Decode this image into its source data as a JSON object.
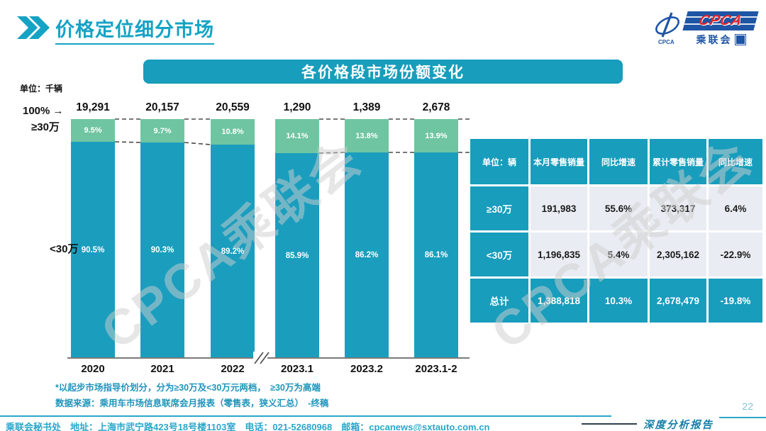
{
  "page": {
    "title": "价格定位细分市场",
    "page_number": "22",
    "report_label": "深度分析报告"
  },
  "logo": {
    "acronym": "CPCA",
    "org_name": "乘联会",
    "emblem_text": "CPCA"
  },
  "banner": {
    "title": "各价格段市场份额变化"
  },
  "chart_data": {
    "type": "bar",
    "stacked": true,
    "unit_label": "单位：千辆",
    "axis_top_label": "100%",
    "series_top_label": "≥30万",
    "series_bottom_label": "<30万",
    "categories": [
      "2020",
      "2021",
      "2022",
      "2023.1",
      "2023.2",
      "2023.1-2"
    ],
    "totals": [
      "19,291",
      "20,157",
      "20,559",
      "1,290",
      "1,389",
      "2,678"
    ],
    "series": [
      {
        "name": "≥30万",
        "values": [
          9.5,
          9.7,
          10.8,
          14.1,
          13.8,
          13.9
        ],
        "color": "#6FC5A1"
      },
      {
        "name": "<30万",
        "values": [
          90.5,
          90.3,
          89.2,
          85.9,
          86.2,
          86.1
        ],
        "color": "#1B9EBE"
      }
    ],
    "axis_break_after_index": 2,
    "ylim": [
      0,
      100
    ],
    "grid": false,
    "legend_position": "left-axis"
  },
  "notes": [
    "*以起步市场指导价划分，分为≥30万及<30万元两档，　≥30万为高端",
    "数据来源：乘用车市场信息联席会月报表（零售表，狭义汇总）　-终稿"
  ],
  "table": {
    "headers": [
      "单位：辆",
      "本月零售销量",
      "同比增速",
      "累计零售销量",
      "同比增速"
    ],
    "rows": [
      {
        "label": "≥30万",
        "total": false,
        "cells": [
          "191,983",
          "55.6%",
          "373,317",
          "6.4%"
        ]
      },
      {
        "label": "<30万",
        "total": false,
        "cells": [
          "1,196,835",
          "5.4%",
          "2,305,162",
          "-22.9%"
        ]
      },
      {
        "label": "总计",
        "total": true,
        "cells": [
          "1,388,818",
          "10.3%",
          "2,678,479",
          "-19.8%"
        ]
      }
    ]
  },
  "watermark": "CPCA乘联会",
  "footer": {
    "text": "乘联会秘书处　地址：上海市武宁路423号18号楼1103室　电话：021-52680968　邮箱：cpcanews@sxtauto.com.cn"
  },
  "colors": {
    "teal": "#189DBC",
    "bar_teal": "#1B9EBE",
    "green": "#6FC5A1",
    "note_teal": "#1F95BB",
    "footer_teal": "#2AA7C9",
    "table_cell_bg": "#E9EDF3",
    "logo_blue": "#1E55A5",
    "logo_red": "#E0262C"
  }
}
